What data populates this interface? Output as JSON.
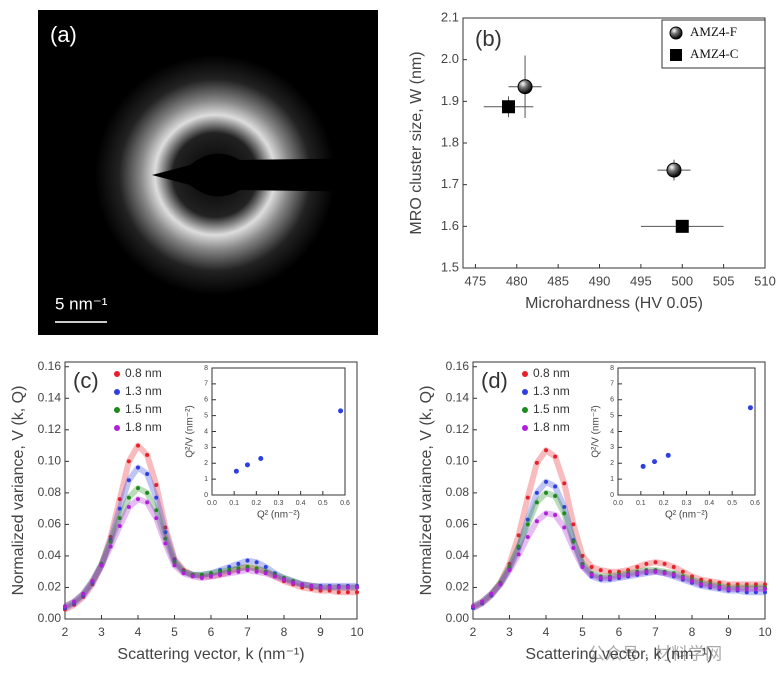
{
  "image_panel": {
    "label": "(a)",
    "scale_bar": "5 nm⁻¹"
  },
  "watermark": "公众号 · 材料学网",
  "chart_data": [
    {
      "type": "scatter",
      "label": "(b)",
      "xlabel": "Microhardness (HV 0.05)",
      "ylabel": "MRO cluster size, W (nm)",
      "xlim": [
        473.5,
        510
      ],
      "xticks": [
        475,
        480,
        485,
        490,
        495,
        500,
        505,
        510
      ],
      "ylim": [
        1.5,
        2.1
      ],
      "yticks": [
        1.5,
        1.6,
        1.7,
        1.8,
        1.9,
        {
          "value": 2.0,
          "label": "2.0"
        },
        2.1
      ],
      "legend": "upper right",
      "series": [
        {
          "name": "AMZ4-F",
          "marker": "circle",
          "color": "#000000",
          "x": [
            481,
            499
          ],
          "values": [
            1.935,
            1.735
          ],
          "xerr": [
            2,
            2
          ],
          "yerr": [
            0.075,
            0.025
          ]
        },
        {
          "name": "AMZ4-C",
          "marker": "square",
          "color": "#000000",
          "x": [
            479,
            500
          ],
          "values": [
            1.887,
            1.6
          ],
          "xerr": [
            3,
            5
          ],
          "yerr": [
            0.025,
            0.01
          ]
        }
      ]
    },
    {
      "type": "line",
      "label": "(c)",
      "xlabel": "Scattering vector, k (nm⁻¹)",
      "ylabel": "Normalized variance, V (k, Q)",
      "xlim": [
        2,
        10
      ],
      "xticks": [
        2,
        3,
        4,
        5,
        6,
        7,
        8,
        9,
        10
      ],
      "ylim": [
        0,
        0.163
      ],
      "yticks": [
        {
          "value": 0,
          "label": "0.00"
        },
        0.02,
        0.04,
        0.06,
        0.08,
        {
          "value": 0.1,
          "label": "0.10"
        },
        0.12,
        0.14,
        0.16
      ],
      "legend": "upper left",
      "x": [
        2,
        2.25,
        2.5,
        2.75,
        3,
        3.25,
        3.5,
        3.75,
        4,
        4.25,
        4.5,
        4.75,
        5,
        5.25,
        5.5,
        5.75,
        6,
        6.25,
        6.5,
        6.75,
        7,
        7.25,
        7.5,
        7.75,
        8,
        8.25,
        8.5,
        8.75,
        9,
        9.25,
        9.5,
        9.75,
        10
      ],
      "series": [
        {
          "name": "0.8 nm",
          "color": "#e8202a",
          "values": [
            0.006,
            0.009,
            0.014,
            0.022,
            0.034,
            0.052,
            0.076,
            0.1,
            0.11,
            0.104,
            0.085,
            0.058,
            0.038,
            0.031,
            0.028,
            0.027,
            0.027,
            0.028,
            0.03,
            0.032,
            0.033,
            0.032,
            0.03,
            0.027,
            0.024,
            0.022,
            0.02,
            0.019,
            0.018,
            0.018,
            0.017,
            0.017,
            0.017
          ]
        },
        {
          "name": "1.3 nm",
          "color": "#2d3fe0",
          "values": [
            0.007,
            0.01,
            0.015,
            0.023,
            0.034,
            0.05,
            0.07,
            0.088,
            0.096,
            0.092,
            0.077,
            0.055,
            0.037,
            0.03,
            0.028,
            0.028,
            0.029,
            0.031,
            0.033,
            0.035,
            0.037,
            0.036,
            0.033,
            0.029,
            0.026,
            0.024,
            0.022,
            0.021,
            0.021,
            0.021,
            0.021,
            0.021,
            0.021
          ]
        },
        {
          "name": "1.5 nm",
          "color": "#1e8a1e",
          "values": [
            0.008,
            0.011,
            0.016,
            0.024,
            0.035,
            0.049,
            0.064,
            0.077,
            0.083,
            0.08,
            0.069,
            0.051,
            0.036,
            0.03,
            0.028,
            0.028,
            0.029,
            0.03,
            0.031,
            0.032,
            0.033,
            0.032,
            0.03,
            0.028,
            0.026,
            0.024,
            0.022,
            0.021,
            0.02,
            0.02,
            0.02,
            0.02,
            0.02
          ]
        },
        {
          "name": "1.8 nm",
          "color": "#b020d8",
          "values": [
            0.008,
            0.011,
            0.016,
            0.024,
            0.034,
            0.046,
            0.059,
            0.071,
            0.076,
            0.074,
            0.064,
            0.048,
            0.034,
            0.029,
            0.027,
            0.026,
            0.027,
            0.028,
            0.029,
            0.03,
            0.031,
            0.03,
            0.029,
            0.027,
            0.025,
            0.023,
            0.022,
            0.021,
            0.02,
            0.02,
            0.02,
            0.02,
            0.02
          ]
        }
      ],
      "inset": {
        "type": "scatter",
        "xlabel": "Q² (nm⁻²)",
        "ylabel": "Q²/V (nm⁻²)",
        "color": "#2d3fe0",
        "xlim": [
          0,
          0.6
        ],
        "xticks": [
          {
            "value": 0,
            "label": "0.0"
          },
          0.1,
          0.2,
          0.3,
          0.4,
          0.5,
          0.6
        ],
        "ylim": [
          0,
          8
        ],
        "yticks": [
          0,
          1,
          2,
          3,
          4,
          5,
          6,
          7,
          8
        ],
        "x": [
          0.11,
          0.16,
          0.22,
          0.58
        ],
        "values": [
          1.5,
          1.9,
          2.3,
          5.3
        ]
      }
    },
    {
      "type": "line",
      "label": "(d)",
      "xlabel": "Scattering vector, k (nm⁻¹)",
      "ylabel": "Normalized variance, V (k, Q)",
      "xlim": [
        2,
        10
      ],
      "xticks": [
        2,
        3,
        4,
        5,
        6,
        7,
        8,
        9,
        10
      ],
      "ylim": [
        0,
        0.163
      ],
      "yticks": [
        {
          "value": 0,
          "label": "0.00"
        },
        0.02,
        0.04,
        0.06,
        0.08,
        {
          "value": 0.1,
          "label": "0.10"
        },
        0.12,
        0.14,
        0.16
      ],
      "legend": "upper left",
      "x": [
        2,
        2.25,
        2.5,
        2.75,
        3,
        3.25,
        3.5,
        3.75,
        4,
        4.25,
        4.5,
        4.75,
        5,
        5.25,
        5.5,
        5.75,
        6,
        6.25,
        6.5,
        6.75,
        7,
        7.25,
        7.5,
        7.75,
        8,
        8.25,
        8.5,
        8.75,
        9,
        9.25,
        9.5,
        9.75,
        10
      ],
      "series": [
        {
          "name": "0.8 nm",
          "color": "#e8202a",
          "values": [
            0.007,
            0.01,
            0.015,
            0.023,
            0.035,
            0.053,
            0.077,
            0.099,
            0.107,
            0.103,
            0.086,
            0.06,
            0.04,
            0.033,
            0.031,
            0.03,
            0.03,
            0.031,
            0.033,
            0.035,
            0.036,
            0.035,
            0.033,
            0.03,
            0.027,
            0.025,
            0.024,
            0.023,
            0.022,
            0.022,
            0.022,
            0.022,
            0.022
          ]
        },
        {
          "name": "1.3 nm",
          "color": "#2d3fe0",
          "values": [
            0.007,
            0.01,
            0.015,
            0.022,
            0.032,
            0.045,
            0.063,
            0.08,
            0.087,
            0.084,
            0.071,
            0.05,
            0.034,
            0.027,
            0.025,
            0.025,
            0.026,
            0.027,
            0.028,
            0.029,
            0.03,
            0.029,
            0.027,
            0.025,
            0.023,
            0.021,
            0.02,
            0.019,
            0.018,
            0.018,
            0.017,
            0.017,
            0.017
          ]
        },
        {
          "name": "1.5 nm",
          "color": "#1e8a1e",
          "values": [
            0.008,
            0.011,
            0.016,
            0.023,
            0.033,
            0.046,
            0.06,
            0.074,
            0.08,
            0.078,
            0.067,
            0.049,
            0.035,
            0.029,
            0.027,
            0.027,
            0.028,
            0.029,
            0.03,
            0.031,
            0.031,
            0.03,
            0.029,
            0.027,
            0.025,
            0.023,
            0.022,
            0.021,
            0.02,
            0.02,
            0.02,
            0.02,
            0.02
          ]
        },
        {
          "name": "1.8 nm",
          "color": "#b020d8",
          "values": [
            0.008,
            0.011,
            0.016,
            0.022,
            0.031,
            0.041,
            0.052,
            0.062,
            0.067,
            0.066,
            0.058,
            0.045,
            0.033,
            0.028,
            0.026,
            0.026,
            0.027,
            0.028,
            0.029,
            0.03,
            0.03,
            0.029,
            0.028,
            0.026,
            0.024,
            0.022,
            0.021,
            0.02,
            0.019,
            0.019,
            0.019,
            0.019,
            0.019
          ]
        }
      ],
      "inset": {
        "type": "scatter",
        "xlabel": "Q² (nm⁻²)",
        "ylabel": "Q²/V (nm⁻²)",
        "color": "#2d3fe0",
        "xlim": [
          0,
          0.6
        ],
        "xticks": [
          {
            "value": 0,
            "label": "0.0"
          },
          0.1,
          0.2,
          0.3,
          0.4,
          0.5,
          0.6
        ],
        "ylim": [
          0,
          8
        ],
        "yticks": [
          0,
          1,
          2,
          3,
          4,
          5,
          6,
          7,
          8
        ],
        "x": [
          0.11,
          0.16,
          0.22,
          0.58
        ],
        "values": [
          1.8,
          2.1,
          2.5,
          5.5
        ]
      }
    }
  ]
}
